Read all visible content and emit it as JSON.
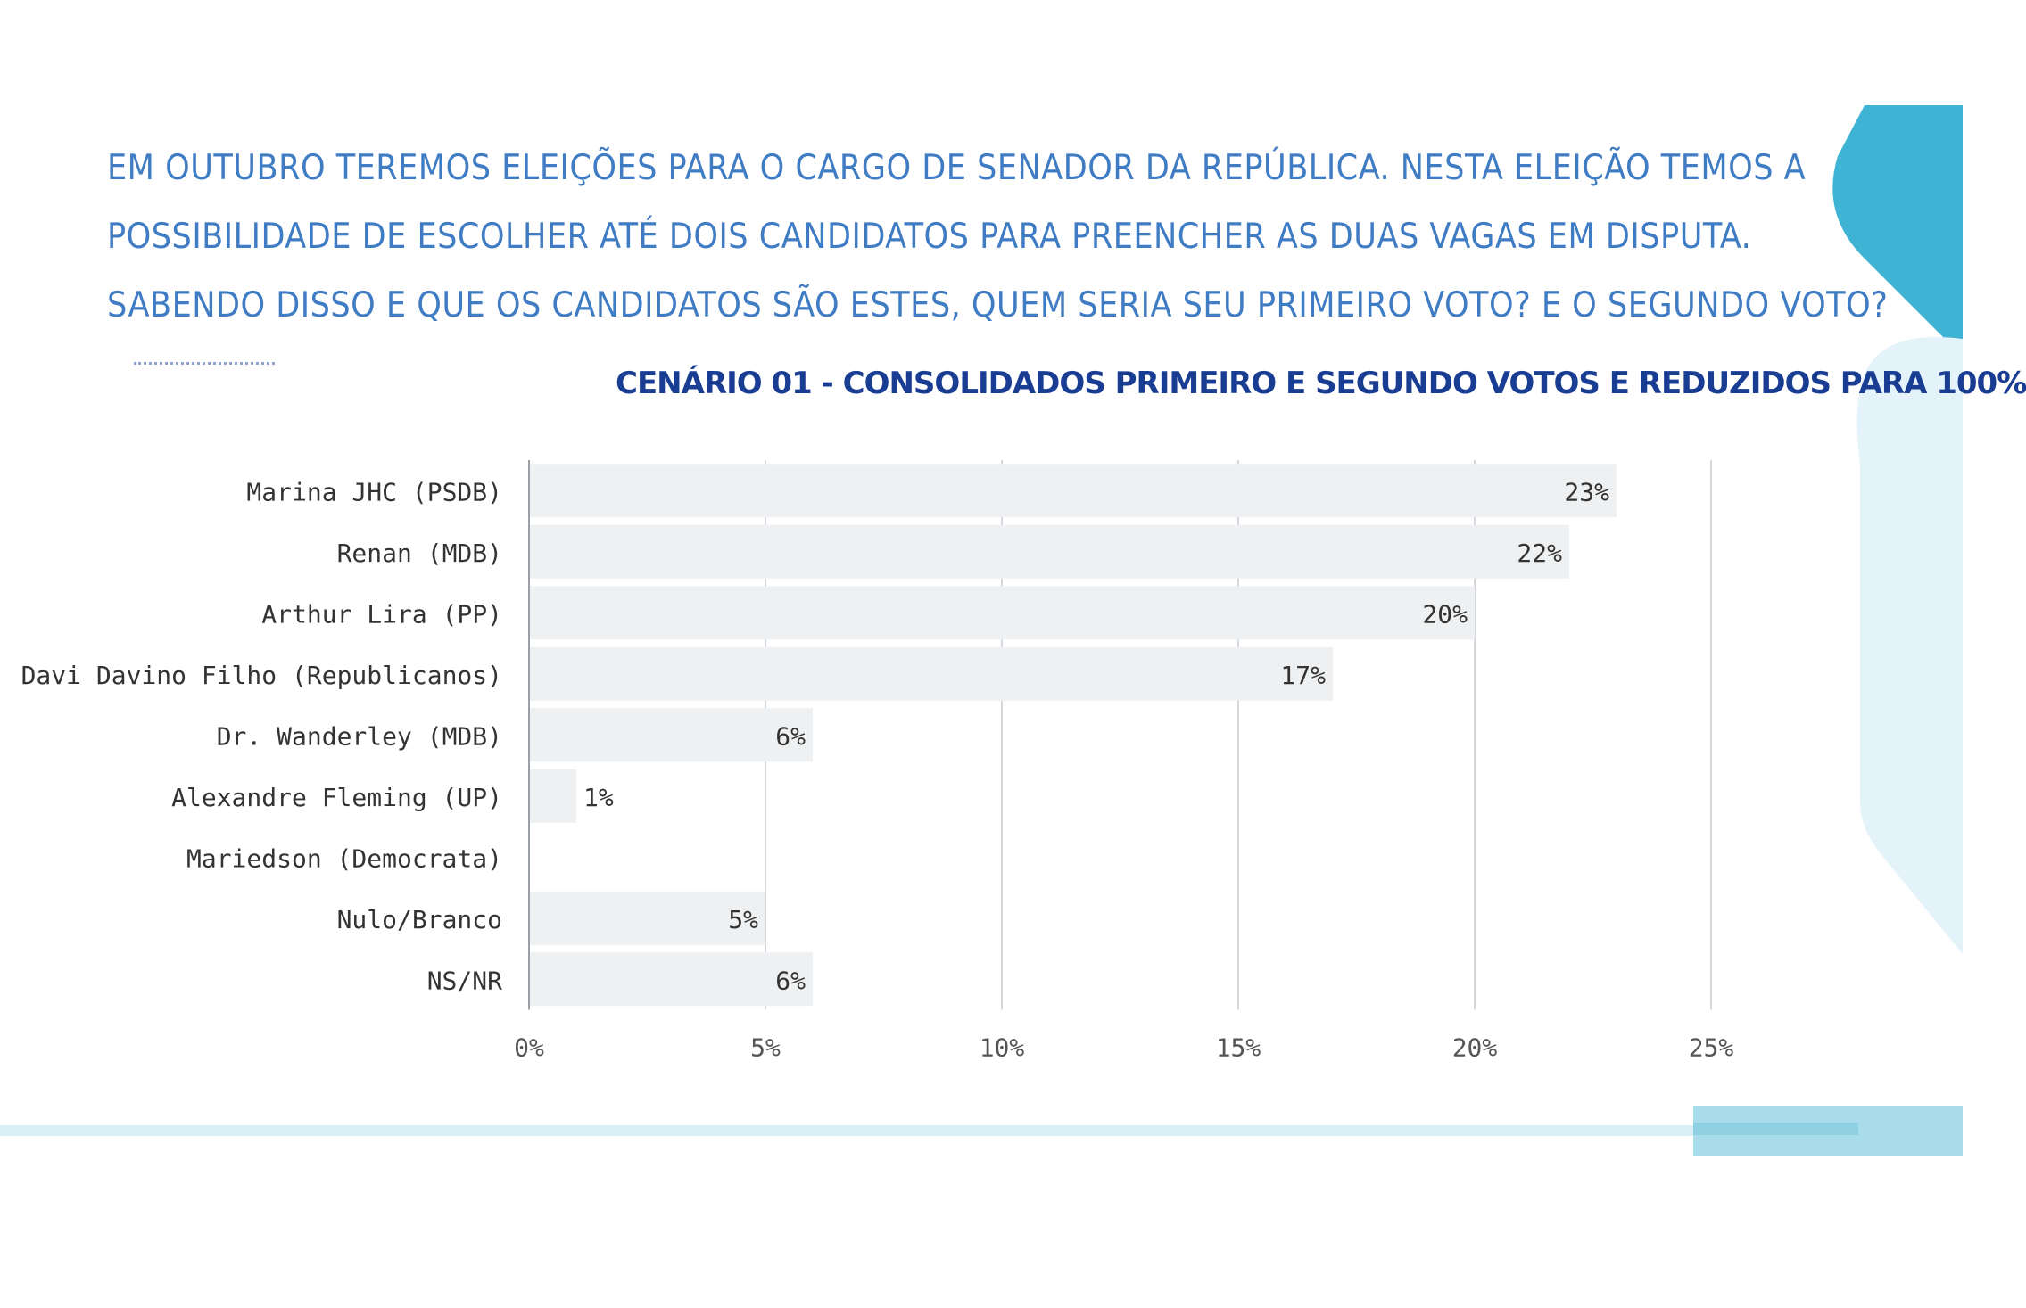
{
  "question": {
    "line1": "EM OUTUBRO TEREMOS ELEIÇÕES PARA O CARGO DE SENADOR DA REPÚBLICA. NESTA ELEIÇÃO TEMOS A",
    "line2": "POSSIBILIDADE DE ESCOLHER ATÉ DOIS CANDIDATOS PARA PREENCHER AS DUAS VAGAS EM DISPUTA.",
    "line3": "SABENDO DISSO E QUE OS CANDIDATOS SÃO ESTES, QUEM SERIA SEU PRIMEIRO VOTO? E O SEGUNDO VOTO?"
  },
  "chart_title": "CENÁRIO 01 - CONSOLIDADOS PRIMEIRO E SEGUNDO VOTOS E REDUZIDOS PARA 100%",
  "colors": {
    "question_text": "#3f7cc4",
    "title_text": "#1a3d94",
    "bar_fill": "#eef0f2",
    "grid": "#d5d8dc",
    "label_text": "#333333",
    "accent_teal": "#3eb3d4",
    "accent_light": "#e3f3f9"
  },
  "chart_data": {
    "type": "bar",
    "orientation": "horizontal",
    "title": "CENÁRIO 01 - CONSOLIDADOS PRIMEIRO E SEGUNDO VOTOS E REDUZIDOS PARA 100%",
    "categories": [
      "Marina JHC (PSDB)",
      "Renan (MDB)",
      "Arthur Lira (PP)",
      "Davi Davino Filho (Republicanos)",
      "Dr. Wanderley (MDB)",
      "Alexandre Fleming (UP)",
      "Mariedson (Democrata)",
      "Nulo/Branco",
      "NS/NR"
    ],
    "values": [
      23,
      22,
      20,
      17,
      6,
      1,
      0,
      5,
      6
    ],
    "data_labels": [
      "23%",
      "22%",
      "20%",
      "17%",
      "6%",
      "1%",
      "",
      "5%",
      "6%"
    ],
    "xlim": [
      0,
      25
    ],
    "xticks": [
      0,
      5,
      10,
      15,
      20,
      25
    ],
    "xtick_labels": [
      "0%",
      "5%",
      "10%",
      "15%",
      "20%",
      "25%"
    ],
    "xlabel": "",
    "ylabel": "",
    "grid": true,
    "legend": "none"
  }
}
